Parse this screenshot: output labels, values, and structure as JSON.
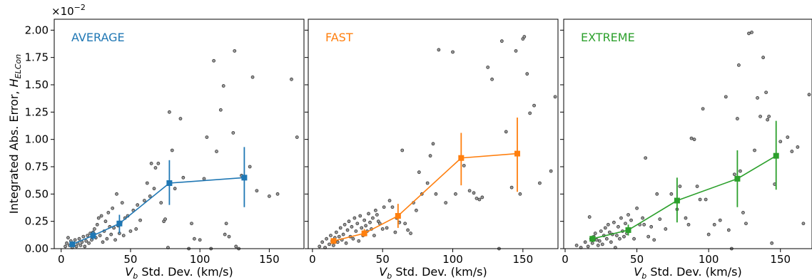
{
  "chart_data": {
    "type": "scatter",
    "ylabel": "Integrated Abs. Error, ",
    "ylabel_symbol": "H",
    "ylabel_subscript": "ELCon",
    "y_multiplier_base": "×10",
    "y_multiplier_exp": "−2",
    "ylim": [
      0,
      2.1
    ],
    "y_ticks": [
      0,
      0.25,
      0.5,
      0.75,
      1.0,
      1.25,
      1.5,
      1.75,
      2.0
    ],
    "y_tick_labels": [
      "0.00",
      "0.25",
      "0.50",
      "0.75",
      "1.00",
      "1.25",
      "1.50",
      "1.75",
      "2.00"
    ],
    "scatter_color": "#9a9a9a",
    "panels": [
      {
        "title": "AVERAGE",
        "color": "#1f77b4",
        "xlim": [
          -5,
          175
        ],
        "x_ticks": [
          0,
          50,
          100,
          150
        ],
        "x_tick_labels": [
          "0",
          "50",
          "100",
          "150"
        ],
        "xlabel_symbol": "V",
        "xlabel_subscript": "b",
        "xlabel": " Std. Dev. (km/s)",
        "scatter": [
          [
            3,
            0.02
          ],
          [
            4,
            0.05
          ],
          [
            5,
            0.1
          ],
          [
            6,
            0.03
          ],
          [
            7,
            0.07
          ],
          [
            8,
            0.01
          ],
          [
            9,
            0.04
          ],
          [
            10,
            0.08
          ],
          [
            11,
            0.02
          ],
          [
            12,
            0.05
          ],
          [
            13,
            0.09
          ],
          [
            14,
            0.03
          ],
          [
            15,
            0.06
          ],
          [
            16,
            0.11
          ],
          [
            17,
            0.02
          ],
          [
            18,
            0.07
          ],
          [
            19,
            0.12
          ],
          [
            20,
            0.05
          ],
          [
            21,
            0.14
          ],
          [
            22,
            0.08
          ],
          [
            23,
            0.15
          ],
          [
            24,
            0.18
          ],
          [
            25,
            0.1
          ],
          [
            26,
            0.22
          ],
          [
            27,
            0.28
          ],
          [
            28,
            0.12
          ],
          [
            29,
            0.3
          ],
          [
            30,
            0.06
          ],
          [
            31,
            0.16
          ],
          [
            32,
            0.25
          ],
          [
            33,
            0.09
          ],
          [
            34,
            0.33
          ],
          [
            35,
            0.2
          ],
          [
            36,
            0.13
          ],
          [
            37,
            0.37
          ],
          [
            38,
            0.19
          ],
          [
            39,
            0.08
          ],
          [
            40,
            0.5
          ],
          [
            41,
            0.21
          ],
          [
            42,
            0.14
          ],
          [
            43,
            0.24
          ],
          [
            44,
            0.42
          ],
          [
            45,
            0.12
          ],
          [
            46,
            0.28
          ],
          [
            48,
            0.3
          ],
          [
            50,
            0.16
          ],
          [
            52,
            0.35
          ],
          [
            54,
            0.18
          ],
          [
            55,
            0.4
          ],
          [
            57,
            0.26
          ],
          [
            60,
            0.44
          ],
          [
            62,
            0.6
          ],
          [
            64,
            0.48
          ],
          [
            65,
            0.78
          ],
          [
            67,
            0.55
          ],
          [
            68,
            0.74
          ],
          [
            70,
            0.78
          ],
          [
            72,
            0.42
          ],
          [
            74,
            0.25
          ],
          [
            75,
            0.27
          ],
          [
            77,
            0.01
          ],
          [
            78,
            1.25
          ],
          [
            80,
            0.9
          ],
          [
            82,
            0.55
          ],
          [
            86,
            1.19
          ],
          [
            88,
            0.65
          ],
          [
            92,
            0.0
          ],
          [
            94,
            0.23
          ],
          [
            96,
            0.09
          ],
          [
            100,
            0.08
          ],
          [
            103,
            0.64
          ],
          [
            105,
            1.02
          ],
          [
            108,
            0.0
          ],
          [
            110,
            1.72
          ],
          [
            112,
            0.89
          ],
          [
            115,
            1.27
          ],
          [
            117,
            1.49
          ],
          [
            118,
            0.13
          ],
          [
            119,
            0.23
          ],
          [
            121,
            0.11
          ],
          [
            124,
            1.06
          ],
          [
            125,
            1.81
          ],
          [
            126,
            0.02
          ],
          [
            128,
            0.0
          ],
          [
            130,
            0.67
          ],
          [
            136,
            0.75
          ],
          [
            138,
            1.57
          ],
          [
            141,
            0.53
          ],
          [
            150,
            0.48
          ],
          [
            156,
            0.5
          ],
          [
            166,
            1.55
          ],
          [
            170,
            1.02
          ]
        ],
        "line_x": [
          8,
          23,
          42,
          78,
          132
        ],
        "line_y": [
          0.04,
          0.12,
          0.23,
          0.6,
          0.65
        ],
        "err_low": [
          0.02,
          0.08,
          0.14,
          0.4,
          0.38
        ],
        "err_high": [
          0.06,
          0.16,
          0.31,
          0.81,
          0.93
        ]
      },
      {
        "title": "FAST",
        "color": "#ff7f0e",
        "xlim": [
          -3,
          175
        ],
        "x_ticks": [
          0,
          50,
          100,
          150
        ],
        "x_tick_labels": [
          "0",
          "50",
          "100",
          "150"
        ],
        "xlabel_symbol": "V",
        "xlabel_subscript": "b",
        "xlabel": " Std. Dev. (km/s)",
        "scatter": [
          [
            5,
            0.02
          ],
          [
            7,
            0.06
          ],
          [
            9,
            0.01
          ],
          [
            10,
            0.09
          ],
          [
            12,
            0.04
          ],
          [
            13,
            0.12
          ],
          [
            14,
            0.07
          ],
          [
            15,
            0.03
          ],
          [
            16,
            0.1
          ],
          [
            17,
            0.15
          ],
          [
            18,
            0.06
          ],
          [
            19,
            0.11
          ],
          [
            20,
            0.19
          ],
          [
            21,
            0.08
          ],
          [
            22,
            0.13
          ],
          [
            23,
            0.22
          ],
          [
            24,
            0.05
          ],
          [
            25,
            0.17
          ],
          [
            26,
            0.25
          ],
          [
            27,
            0.11
          ],
          [
            28,
            0.2
          ],
          [
            29,
            0.09
          ],
          [
            30,
            0.28
          ],
          [
            31,
            0.16
          ],
          [
            32,
            0.23
          ],
          [
            33,
            0.07
          ],
          [
            34,
            0.3
          ],
          [
            35,
            0.19
          ],
          [
            36,
            0.12
          ],
          [
            37,
            0.26
          ],
          [
            38,
            0.21
          ],
          [
            39,
            0.16
          ],
          [
            40,
            0.32
          ],
          [
            41,
            0.24
          ],
          [
            42,
            0.18
          ],
          [
            43,
            0.28
          ],
          [
            44,
            0.12
          ],
          [
            45,
            0.35
          ],
          [
            46,
            0.31
          ],
          [
            47,
            0.25
          ],
          [
            48,
            0.23
          ],
          [
            50,
            0.18
          ],
          [
            51,
            0.38
          ],
          [
            53,
            0.19
          ],
          [
            55,
            0.44
          ],
          [
            57,
            0.38
          ],
          [
            59,
            0.15
          ],
          [
            60,
            0.28
          ],
          [
            62,
            0.24
          ],
          [
            64,
            0.9
          ],
          [
            66,
            0.23
          ],
          [
            68,
            0.17
          ],
          [
            70,
            0.14
          ],
          [
            72,
            0.42
          ],
          [
            74,
            0.35
          ],
          [
            76,
            0.7
          ],
          [
            78,
            0.5
          ],
          [
            82,
            0.6
          ],
          [
            84,
            0.85
          ],
          [
            86,
            0.96
          ],
          [
            88,
            0.5
          ],
          [
            90,
            1.82
          ],
          [
            95,
            0.42
          ],
          [
            100,
            1.8
          ],
          [
            102,
            0.5
          ],
          [
            108,
            0.76
          ],
          [
            112,
            0.53
          ],
          [
            115,
            0.51
          ],
          [
            117,
            0.46
          ],
          [
            119,
            0.45
          ],
          [
            121,
            0.47
          ],
          [
            125,
            1.66
          ],
          [
            128,
            1.55
          ],
          [
            133,
            0.0
          ],
          [
            135,
            1.9
          ],
          [
            138,
            1.07
          ],
          [
            142,
            0.56
          ],
          [
            145,
            1.81
          ],
          [
            148,
            0.5
          ],
          [
            150,
            1.92
          ],
          [
            151,
            1.94
          ],
          [
            153,
            1.6
          ],
          [
            155,
            1.24
          ],
          [
            158,
            1.31
          ],
          [
            162,
            0.6
          ],
          [
            170,
            0.71
          ],
          [
            173,
            1.39
          ]
        ],
        "line_x": [
          15,
          37,
          61,
          106,
          146
        ],
        "line_y": [
          0.07,
          0.14,
          0.3,
          0.83,
          0.87
        ],
        "err_low": [
          0.05,
          0.11,
          0.19,
          0.58,
          0.52
        ],
        "err_high": [
          0.09,
          0.18,
          0.41,
          1.06,
          1.2
        ]
      },
      {
        "title": "EXTREME",
        "color": "#2ca02c",
        "xlim": [
          -1,
          172
        ],
        "x_ticks": [
          0,
          50,
          100,
          150
        ],
        "x_tick_labels": [
          "0",
          "50",
          "100",
          "150"
        ],
        "xlabel_symbol": "V",
        "xlabel_subscript": "b",
        "xlabel": " Std. Dev. (km/s)",
        "scatter": [
          [
            8,
            0.03
          ],
          [
            11,
            0.01
          ],
          [
            14,
            0.06
          ],
          [
            16,
            0.02
          ],
          [
            17,
            0.29
          ],
          [
            18,
            0.09
          ],
          [
            19,
            0.05
          ],
          [
            20,
            0.11
          ],
          [
            21,
            0.14
          ],
          [
            22,
            0.08
          ],
          [
            23,
            0.03
          ],
          [
            24,
            0.07
          ],
          [
            25,
            0.16
          ],
          [
            26,
            0.04
          ],
          [
            27,
            0.12
          ],
          [
            28,
            0.19
          ],
          [
            29,
            0.09
          ],
          [
            30,
            0.22
          ],
          [
            31,
            0.15
          ],
          [
            32,
            0.06
          ],
          [
            33,
            0.13
          ],
          [
            34,
            0.24
          ],
          [
            35,
            0.01
          ],
          [
            36,
            0.12
          ],
          [
            37,
            0.2
          ],
          [
            38,
            0.09
          ],
          [
            39,
            0.28
          ],
          [
            40,
            0.16
          ],
          [
            41,
            0.11
          ],
          [
            42,
            0.23
          ],
          [
            43,
            0.14
          ],
          [
            44,
            0.31
          ],
          [
            46,
            0.26
          ],
          [
            48,
            0.09
          ],
          [
            50,
            0.37
          ],
          [
            52,
            0.22
          ],
          [
            54,
            0.28
          ],
          [
            55,
            0.22
          ],
          [
            56,
            0.83
          ],
          [
            58,
            0.11
          ],
          [
            60,
            0.2
          ],
          [
            62,
            0.08
          ],
          [
            64,
            0.5
          ],
          [
            66,
            0.27
          ],
          [
            70,
            0.18
          ],
          [
            74,
            0.5
          ],
          [
            78,
            0.36
          ],
          [
            80,
            0.57
          ],
          [
            84,
            0.28
          ],
          [
            86,
            0.22
          ],
          [
            88,
            1.01
          ],
          [
            90,
            1.0
          ],
          [
            92,
            0.57
          ],
          [
            94,
            0.45
          ],
          [
            96,
            1.28
          ],
          [
            98,
            0.45
          ],
          [
            100,
            0.13
          ],
          [
            104,
            0.22
          ],
          [
            108,
            0.26
          ],
          [
            112,
            1.39
          ],
          [
            114,
            0.17
          ],
          [
            116,
            0.0
          ],
          [
            118,
            0.68
          ],
          [
            120,
            1.19
          ],
          [
            121,
            1.68
          ],
          [
            122,
            0.71
          ],
          [
            124,
            0.33
          ],
          [
            126,
            0.23
          ],
          [
            128,
            1.97
          ],
          [
            130,
            1.98
          ],
          [
            132,
            0.9
          ],
          [
            134,
            1.38
          ],
          [
            136,
            1.21
          ],
          [
            138,
            1.75
          ],
          [
            140,
            1.43
          ],
          [
            141,
            1.18
          ],
          [
            142,
            1.21
          ],
          [
            144,
            0.05
          ],
          [
            146,
            0.59
          ],
          [
            150,
            0.98
          ],
          [
            155,
            1.02
          ],
          [
            158,
            0.89
          ],
          [
            162,
            0.93
          ],
          [
            166,
            0.23
          ],
          [
            170,
            1.41
          ]
        ],
        "line_x": [
          19,
          44,
          78,
          120,
          147
        ],
        "line_y": [
          0.09,
          0.17,
          0.44,
          0.64,
          0.85
        ],
        "err_low": [
          0.06,
          0.12,
          0.24,
          0.38,
          0.54
        ],
        "err_high": [
          0.12,
          0.22,
          0.65,
          0.9,
          1.17
        ]
      }
    ]
  }
}
